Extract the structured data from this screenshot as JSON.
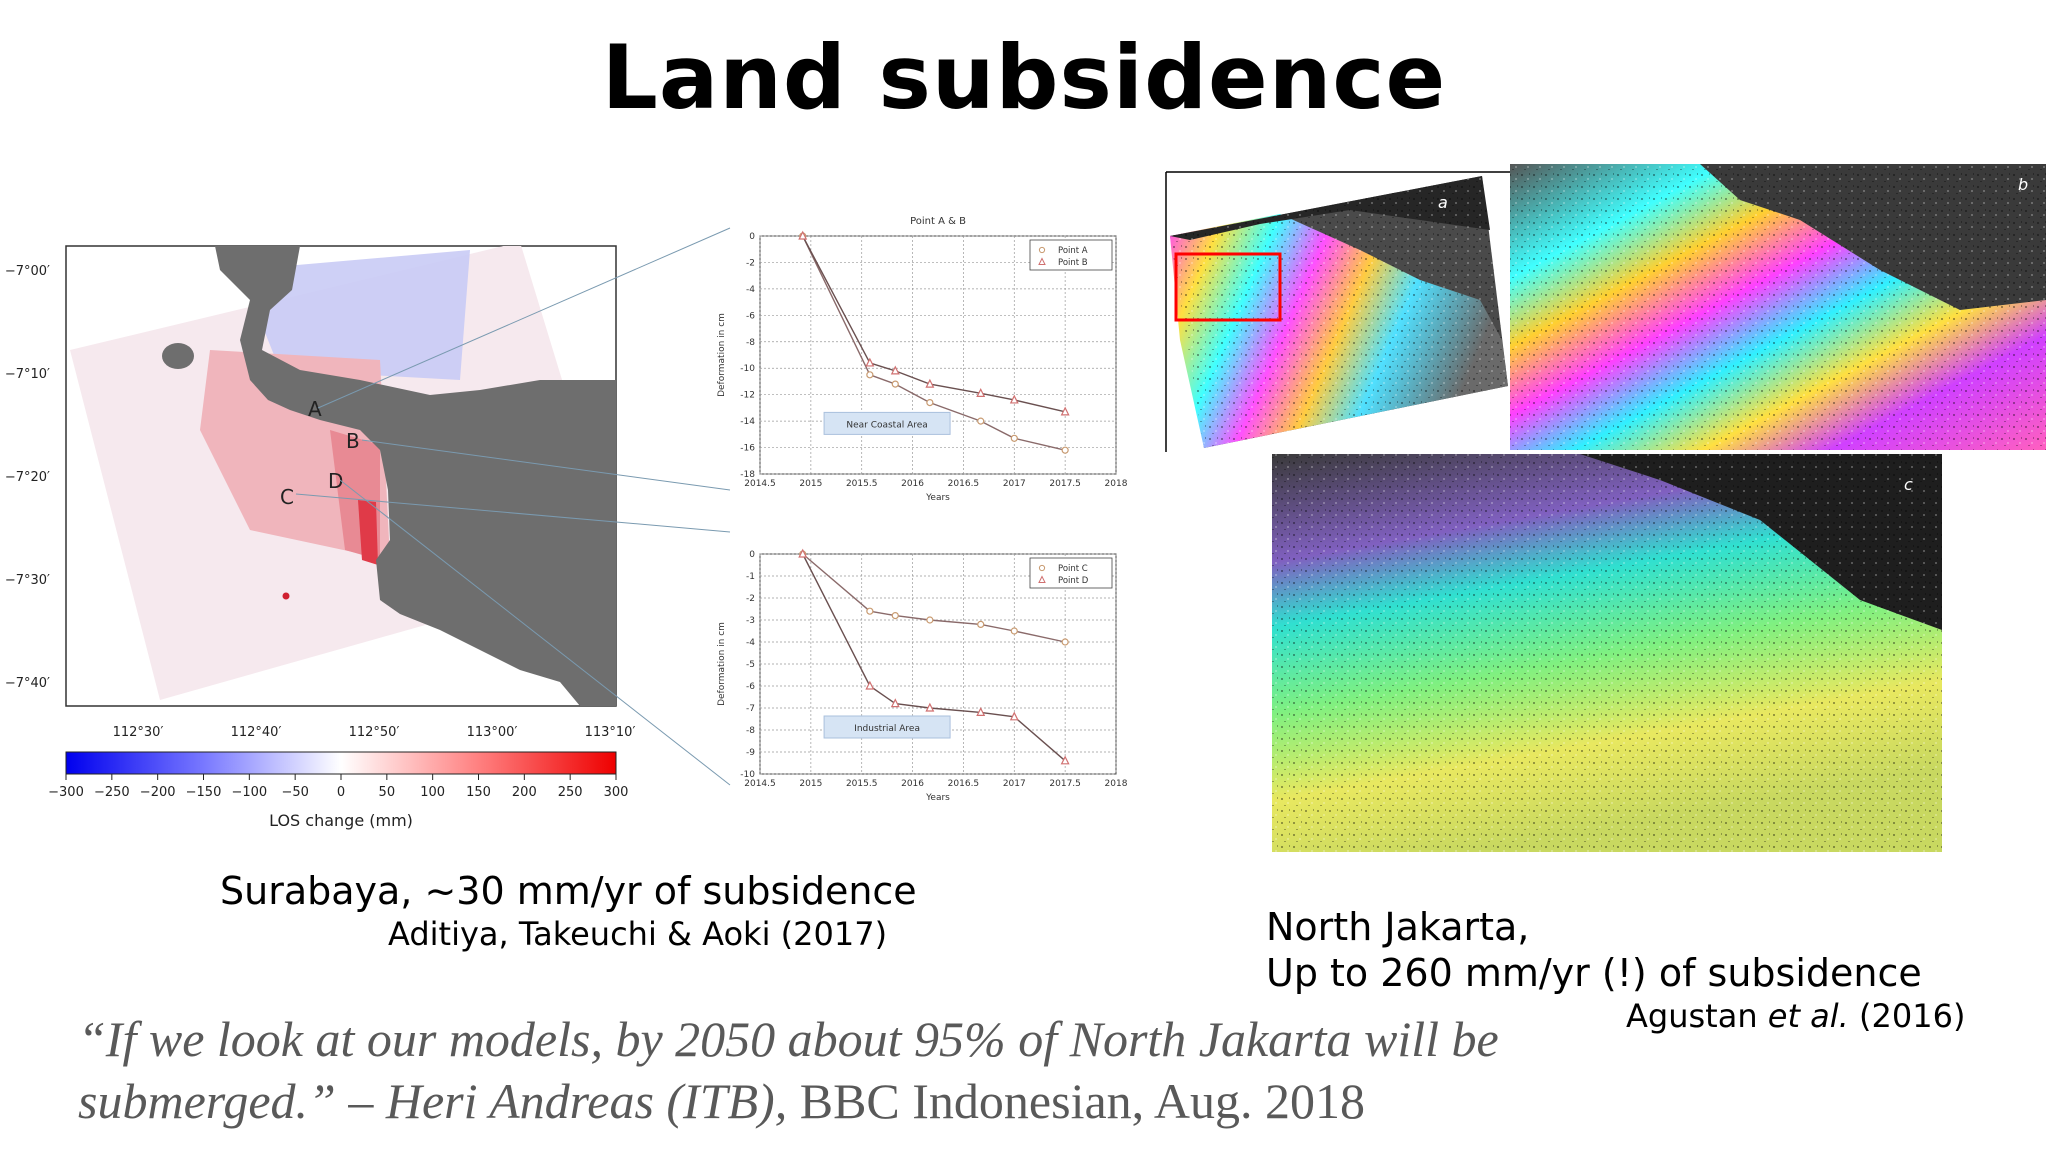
{
  "slide": {
    "title": "Land subsidence",
    "surabaya_caption": "Surabaya, ~30 mm/yr of subsidence",
    "surabaya_source": "Aditiya, Takeuchi & Aoki (2017)",
    "jakarta_caption_line1": "North Jakarta,",
    "jakarta_caption_line2": "Up to 260 mm/yr (!) of subsidence",
    "jakarta_source_prefix": "Agustan ",
    "jakarta_source_italic": "et al.",
    "jakarta_source_suffix": " (2016)",
    "quote_italic": "“If we look at our models, by 2050 about 95% of North Jakarta will be submerged.” – Heri Andreas (ITB),",
    "quote_plain": " BBC Indonesian, Aug. 2018"
  },
  "map": {
    "lat_labels": [
      "−7°00′",
      "−7°10′",
      "−7°20′",
      "−7°30′",
      "−7°40′"
    ],
    "lon_labels": [
      "112°30′",
      "112°40′",
      "112°50′",
      "113°00′",
      "113°10′"
    ],
    "point_labels": [
      "A",
      "B",
      "C",
      "D"
    ],
    "colorbar_ticks": [
      "−300",
      "−250",
      "−200",
      "−150",
      "−100",
      "−50",
      "0",
      "50",
      "100",
      "150",
      "200",
      "250",
      "300"
    ],
    "colorbar_label": "LOS change (mm)",
    "colors": {
      "land": "#6e6e6e",
      "uplift": "#2c2cff",
      "subsidence": "#ff2020"
    }
  },
  "chart_data": [
    {
      "type": "line",
      "title": "Point A & B",
      "xlabel": "Years",
      "ylabel": "Deformation in cm",
      "xlim": [
        2014.5,
        2018
      ],
      "ylim": [
        -18,
        0
      ],
      "x_ticks": [
        "2014.5",
        "2015",
        "2015.5",
        "2016",
        "2016.5",
        "2017",
        "2017.5",
        "2018"
      ],
      "y_ticks": [
        "0",
        "-2",
        "-4",
        "-6",
        "-8",
        "-10",
        "-12",
        "-14",
        "-16",
        "-18"
      ],
      "annotation": "Near Coastal Area",
      "series": [
        {
          "name": "Point A",
          "marker": "circle",
          "x": [
            2014.92,
            2015.58,
            2015.83,
            2016.17,
            2016.67,
            2017.0,
            2017.5
          ],
          "y": [
            0,
            -10.5,
            -11.2,
            -12.6,
            -14.0,
            -15.3,
            -16.2
          ]
        },
        {
          "name": "Point B",
          "marker": "triangle",
          "x": [
            2014.92,
            2015.58,
            2015.83,
            2016.17,
            2016.67,
            2017.0,
            2017.5
          ],
          "y": [
            0,
            -9.6,
            -10.2,
            -11.2,
            -11.9,
            -12.4,
            -13.3
          ]
        }
      ]
    },
    {
      "type": "line",
      "title": "",
      "xlabel": "Years",
      "ylabel": "Deformation in cm",
      "xlim": [
        2014.5,
        2018
      ],
      "ylim": [
        -10,
        0
      ],
      "x_ticks": [
        "2014.5",
        "2015",
        "2015.5",
        "2016",
        "2016.5",
        "2017",
        "2017.5",
        "2018"
      ],
      "y_ticks": [
        "0",
        "-1",
        "-2",
        "-3",
        "-4",
        "-5",
        "-6",
        "-7",
        "-8",
        "-9",
        "-10"
      ],
      "annotation": "Industrial Area",
      "series": [
        {
          "name": "Point C",
          "marker": "circle",
          "x": [
            2014.92,
            2015.58,
            2015.83,
            2016.17,
            2016.67,
            2017.0,
            2017.5
          ],
          "y": [
            0,
            -2.6,
            -2.8,
            -3.0,
            -3.2,
            -3.5,
            -4.0
          ]
        },
        {
          "name": "Point D",
          "marker": "triangle",
          "x": [
            2014.92,
            2015.58,
            2015.83,
            2016.17,
            2016.67,
            2017.0,
            2017.5
          ],
          "y": [
            0,
            -6.0,
            -6.8,
            -7.0,
            -7.2,
            -7.4,
            -9.4
          ]
        }
      ]
    }
  ],
  "insar": {
    "panel_labels": [
      "a",
      "b",
      "c"
    ],
    "highlight_color": "#ff0000"
  }
}
